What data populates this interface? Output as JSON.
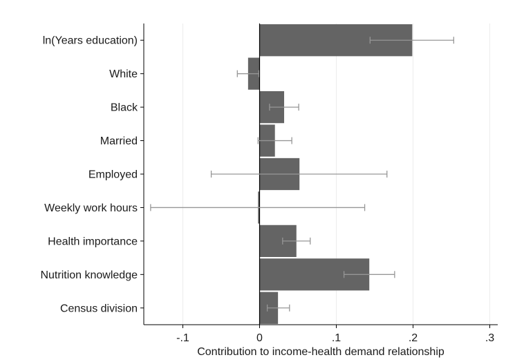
{
  "chart_data": {
    "type": "bar",
    "orientation": "horizontal",
    "title": "",
    "xlabel": "Contribution to income-health demand relationship",
    "ylabel": "",
    "xlim": [
      -0.15,
      0.31
    ],
    "x_ticks": [
      -0.1,
      0,
      0.1,
      0.2,
      0.3
    ],
    "x_tick_labels": [
      "-.1",
      "0",
      ".1",
      ".2",
      ".3"
    ],
    "grid": "vertical",
    "legend": "none",
    "colors": {
      "bar": "#646464",
      "error_bar": "#969696",
      "grid": "#ececec",
      "axis": "#000000"
    },
    "categories": [
      "ln(Years education)",
      "White",
      "Black",
      "Married",
      "Employed",
      "Weekly work hours",
      "Health importance",
      "Nutrition knowledge",
      "Census division"
    ],
    "values": [
      0.199,
      -0.015,
      0.032,
      0.02,
      0.052,
      -0.002,
      0.048,
      0.143,
      0.024
    ],
    "error_low": [
      0.144,
      -0.029,
      0.013,
      -0.002,
      -0.063,
      -0.142,
      0.03,
      0.11,
      0.01
    ],
    "error_high": [
      0.253,
      -0.001,
      0.051,
      0.042,
      0.166,
      0.137,
      0.066,
      0.176,
      0.039
    ]
  }
}
